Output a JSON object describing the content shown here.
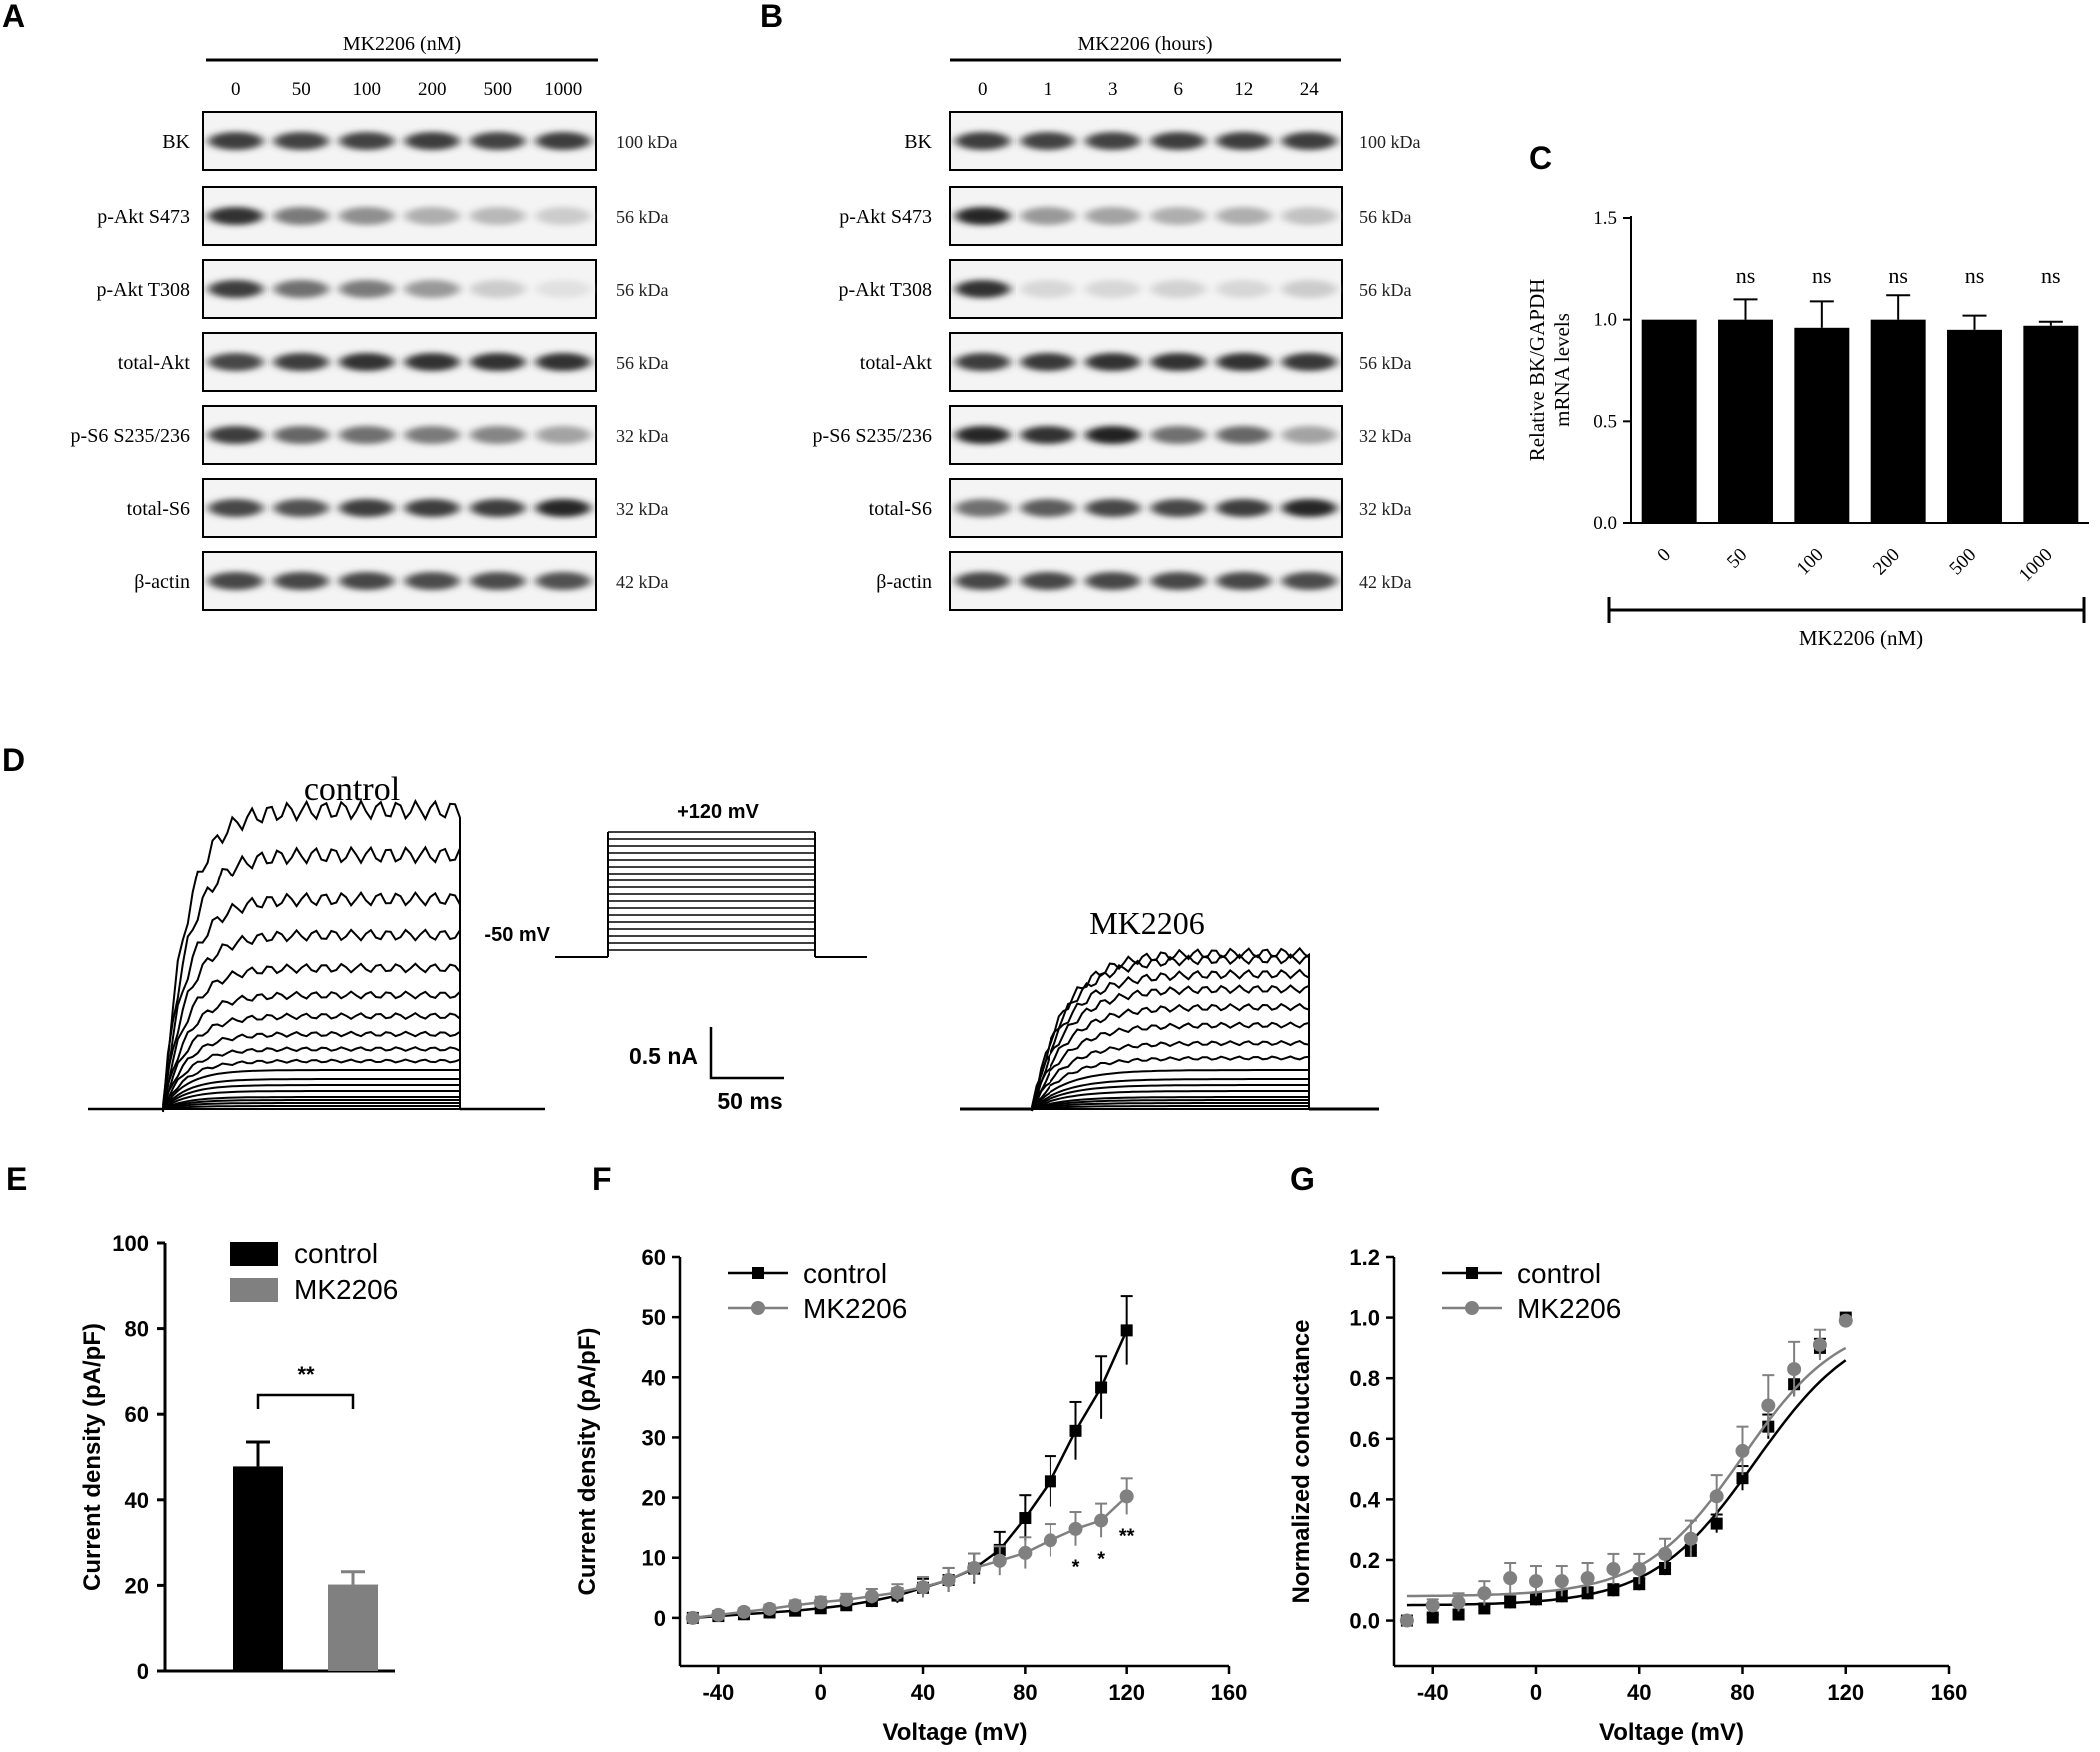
{
  "panels": {
    "A": "A",
    "B": "B",
    "C": "C",
    "D": "D",
    "E": "E",
    "F": "F",
    "G": "G"
  },
  "blots": {
    "row_labels": [
      "BK",
      "p-Akt S473",
      "p-Akt T308",
      "total-Akt",
      "p-S6 S235/236",
      "total-S6",
      "β-actin"
    ],
    "kda_labels": [
      "100 kDa",
      "56 kDa",
      "56 kDa",
      "56 kDa",
      "32 kDa",
      "32 kDa",
      "42 kDa"
    ],
    "A": {
      "header": "MK2206 (nM)",
      "lanes": [
        "0",
        "50",
        "100",
        "200",
        "500",
        "1000"
      ],
      "intensity": [
        [
          0.85,
          0.82,
          0.82,
          0.85,
          0.82,
          0.85
        ],
        [
          0.9,
          0.55,
          0.45,
          0.3,
          0.25,
          0.15
        ],
        [
          0.85,
          0.6,
          0.55,
          0.4,
          0.15,
          0.05
        ],
        [
          0.8,
          0.85,
          0.9,
          0.9,
          0.9,
          0.9
        ],
        [
          0.85,
          0.65,
          0.6,
          0.55,
          0.5,
          0.35
        ],
        [
          0.8,
          0.75,
          0.85,
          0.85,
          0.85,
          0.95
        ],
        [
          0.8,
          0.8,
          0.8,
          0.78,
          0.78,
          0.75
        ]
      ]
    },
    "B": {
      "header": "MK2206 (hours)",
      "lanes": [
        "0",
        "1",
        "3",
        "6",
        "12",
        "24"
      ],
      "intensity": [
        [
          0.85,
          0.82,
          0.82,
          0.85,
          0.85,
          0.85
        ],
        [
          0.95,
          0.4,
          0.35,
          0.3,
          0.3,
          0.2
        ],
        [
          0.9,
          0.1,
          0.1,
          0.12,
          0.1,
          0.15
        ],
        [
          0.85,
          0.88,
          0.9,
          0.9,
          0.9,
          0.88
        ],
        [
          0.95,
          0.9,
          0.98,
          0.6,
          0.65,
          0.35
        ],
        [
          0.6,
          0.7,
          0.8,
          0.8,
          0.85,
          0.95
        ],
        [
          0.8,
          0.8,
          0.8,
          0.8,
          0.8,
          0.78
        ]
      ]
    }
  },
  "chart_data": [
    {
      "id": "C",
      "type": "bar",
      "categories": [
        "0",
        "50",
        "100",
        "200",
        "500",
        "1000"
      ],
      "values": [
        1.0,
        1.0,
        0.96,
        1.0,
        0.95,
        0.97
      ],
      "errors": [
        0.0,
        0.1,
        0.13,
        0.12,
        0.07,
        0.02
      ],
      "annotations": [
        "",
        "ns",
        "ns",
        "ns",
        "ns",
        "ns"
      ],
      "ylabel_line1": "Relative BK/GAPDH",
      "ylabel_line2": "mRNA levels",
      "xlabel": "MK2206 (nM)",
      "ylim": [
        0,
        1.5
      ],
      "yticks": [
        "0.0",
        "0.5",
        "1.0",
        "1.5"
      ]
    },
    {
      "id": "D",
      "type": "line",
      "title_control": "control",
      "title_mk": "MK2206",
      "protocol_top": "+120 mV",
      "protocol_hold": "-50 mV",
      "scale_y": "0.5 nA",
      "scale_x": "50 ms",
      "control_amplitudes": [
        0.0,
        0.01,
        0.02,
        0.03,
        0.04,
        0.06,
        0.08,
        0.1,
        0.13,
        0.16,
        0.2,
        0.25,
        0.31,
        0.38,
        0.47,
        0.58,
        0.7,
        0.85,
        1.0
      ],
      "mk_amplitudes": [
        0.0,
        0.01,
        0.02,
        0.03,
        0.04,
        0.06,
        0.08,
        0.1,
        0.13,
        0.17,
        0.22,
        0.28,
        0.34,
        0.4,
        0.45,
        0.5,
        0.52
      ]
    },
    {
      "id": "E",
      "type": "bar",
      "categories": [
        "control",
        "MK2206"
      ],
      "values": [
        47.8,
        20.2
      ],
      "errors": [
        5.7,
        3.0
      ],
      "colors": [
        "#000000",
        "#808080"
      ],
      "ylabel": "Current density (pA/pF)",
      "ylim": [
        0,
        100
      ],
      "yticks": [
        "0",
        "20",
        "40",
        "60",
        "80",
        "100"
      ],
      "sig": "**",
      "legend": [
        "control",
        "MK2206"
      ]
    },
    {
      "id": "F",
      "type": "line",
      "x": [
        -50,
        -40,
        -30,
        -20,
        -10,
        0,
        10,
        20,
        30,
        40,
        50,
        60,
        70,
        80,
        90,
        100,
        110,
        120
      ],
      "series": [
        {
          "name": "control",
          "marker": "square",
          "color": "#000000",
          "values": [
            0,
            0.3,
            0.6,
            0.9,
            1.2,
            1.6,
            2.1,
            2.8,
            3.7,
            5.0,
            6.3,
            8.2,
            11.3,
            16.6,
            22.7,
            31.1,
            38.3,
            47.8
          ],
          "errors": [
            0.4,
            0.4,
            0.5,
            0.6,
            0.7,
            0.8,
            0.9,
            1.0,
            1.2,
            1.5,
            2.0,
            2.5,
            3.0,
            3.8,
            4.2,
            4.8,
            5.2,
            5.7
          ]
        },
        {
          "name": "MK2206",
          "marker": "circle",
          "color": "#808080",
          "values": [
            0,
            0.5,
            1.0,
            1.5,
            2.1,
            2.6,
            3.0,
            3.6,
            4.2,
            5.1,
            6.3,
            8.3,
            9.5,
            10.8,
            12.9,
            14.8,
            16.2,
            20.2
          ],
          "errors": [
            0.4,
            0.5,
            0.6,
            0.7,
            0.8,
            0.9,
            1.0,
            1.2,
            1.4,
            1.7,
            2.0,
            2.4,
            2.4,
            2.6,
            2.7,
            2.8,
            2.8,
            3.0
          ]
        }
      ],
      "sig_labels": [
        {
          "x": 100,
          "label": "*"
        },
        {
          "x": 110,
          "label": "*"
        },
        {
          "x": 120,
          "label": "**"
        }
      ],
      "xlabel": "Voltage (mV)",
      "ylabel": "Current density (pA/pF)",
      "xlim": [
        -55,
        160
      ],
      "ylim": [
        -8,
        60
      ],
      "xticks": [
        "-40",
        "0",
        "40",
        "80",
        "120",
        "160"
      ],
      "yticks": [
        "0",
        "10",
        "20",
        "30",
        "40",
        "50",
        "60"
      ],
      "legend": [
        "control",
        "MK2206"
      ]
    },
    {
      "id": "G",
      "type": "line",
      "x": [
        -50,
        -40,
        -30,
        -20,
        -10,
        0,
        10,
        20,
        30,
        40,
        50,
        60,
        70,
        80,
        90,
        100,
        110,
        120
      ],
      "series": [
        {
          "name": "control",
          "marker": "square",
          "color": "#000000",
          "values": [
            0.0,
            0.01,
            0.02,
            0.04,
            0.06,
            0.07,
            0.08,
            0.09,
            0.1,
            0.12,
            0.17,
            0.23,
            0.32,
            0.47,
            0.64,
            0.78,
            0.9,
            1.0
          ],
          "errors": [
            0.01,
            0.01,
            0.01,
            0.01,
            0.02,
            0.02,
            0.02,
            0.02,
            0.02,
            0.02,
            0.02,
            0.02,
            0.03,
            0.04,
            0.04,
            0.04,
            0.03,
            0.0
          ],
          "fit_v_half": 85,
          "fit_k": 20,
          "fit_base": 0.05
        },
        {
          "name": "MK2206",
          "marker": "circle",
          "color": "#808080",
          "values": [
            0.0,
            0.05,
            0.06,
            0.09,
            0.14,
            0.13,
            0.13,
            0.14,
            0.17,
            0.17,
            0.22,
            0.27,
            0.41,
            0.56,
            0.71,
            0.83,
            0.91,
            0.99
          ],
          "errors": [
            0.01,
            0.02,
            0.03,
            0.04,
            0.05,
            0.05,
            0.05,
            0.05,
            0.05,
            0.05,
            0.05,
            0.06,
            0.07,
            0.08,
            0.1,
            0.09,
            0.05,
            0.01
          ],
          "fit_v_half": 80,
          "fit_k": 19,
          "fit_base": 0.08
        }
      ],
      "xlabel": "Voltage (mV)",
      "ylabel": "Normalized conductance",
      "xlim": [
        -55,
        160
      ],
      "ylim": [
        -0.15,
        1.2
      ],
      "xticks": [
        "-40",
        "0",
        "40",
        "80",
        "120",
        "160"
      ],
      "yticks": [
        "0.0",
        "0.2",
        "0.4",
        "0.6",
        "0.8",
        "1.0",
        "1.2"
      ],
      "legend": [
        "control",
        "MK2206"
      ]
    }
  ]
}
